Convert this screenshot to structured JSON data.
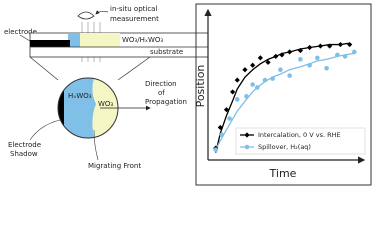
{
  "diagram": {
    "measurement": [
      "in-situ optical",
      "measurement"
    ],
    "electrode": "electrode",
    "film": "WO₃/HₓWO₃",
    "substrate": "substrate",
    "left_phase": "HₓWO₃",
    "right_phase": "WO₃",
    "direction": [
      "Direction",
      "of",
      "Propagation"
    ],
    "shadow": [
      "Electrode",
      "Shadow"
    ],
    "front": "Migrating Front"
  },
  "chart_data": {
    "type": "scatter",
    "x_label": "Time",
    "y_label": "Position",
    "xlim": [
      0,
      1
    ],
    "ylim": [
      0,
      1
    ],
    "legend": "lower right",
    "series": [
      {
        "name": "Intercalation, 0 V vs. RHE",
        "color": "#000000",
        "marker": "diamond",
        "x": [
          0.05,
          0.08,
          0.12,
          0.16,
          0.19,
          0.24,
          0.29,
          0.34,
          0.39,
          0.44,
          0.48,
          0.53,
          0.6,
          0.66,
          0.73,
          0.79,
          0.86,
          0.92
        ],
        "values": [
          0.08,
          0.22,
          0.34,
          0.46,
          0.54,
          0.61,
          0.64,
          0.69,
          0.66,
          0.7,
          0.71,
          0.73,
          0.74,
          0.76,
          0.77,
          0.77,
          0.78,
          0.78
        ],
        "fit": [
          0.05,
          0.18,
          0.3,
          0.4,
          0.48,
          0.56,
          0.61,
          0.65,
          0.68,
          0.7,
          0.72,
          0.73,
          0.75,
          0.76,
          0.77,
          0.78,
          0.78,
          0.79
        ]
      },
      {
        "name": "Spillover, H₂(aq)",
        "color": "#7fbfe8",
        "marker": "circle",
        "x": [
          0.05,
          0.09,
          0.14,
          0.19,
          0.25,
          0.29,
          0.32,
          0.37,
          0.42,
          0.47,
          0.53,
          0.6,
          0.66,
          0.71,
          0.77,
          0.84,
          0.89,
          0.95
        ],
        "values": [
          0.07,
          0.17,
          0.28,
          0.41,
          0.43,
          0.51,
          0.49,
          0.54,
          0.55,
          0.61,
          0.57,
          0.68,
          0.64,
          0.69,
          0.62,
          0.71,
          0.7,
          0.73
        ],
        "fit": [
          0.07,
          0.15,
          0.24,
          0.33,
          0.41,
          0.46,
          0.49,
          0.53,
          0.56,
          0.58,
          0.61,
          0.63,
          0.65,
          0.67,
          0.68,
          0.7,
          0.71,
          0.72
        ]
      }
    ]
  }
}
